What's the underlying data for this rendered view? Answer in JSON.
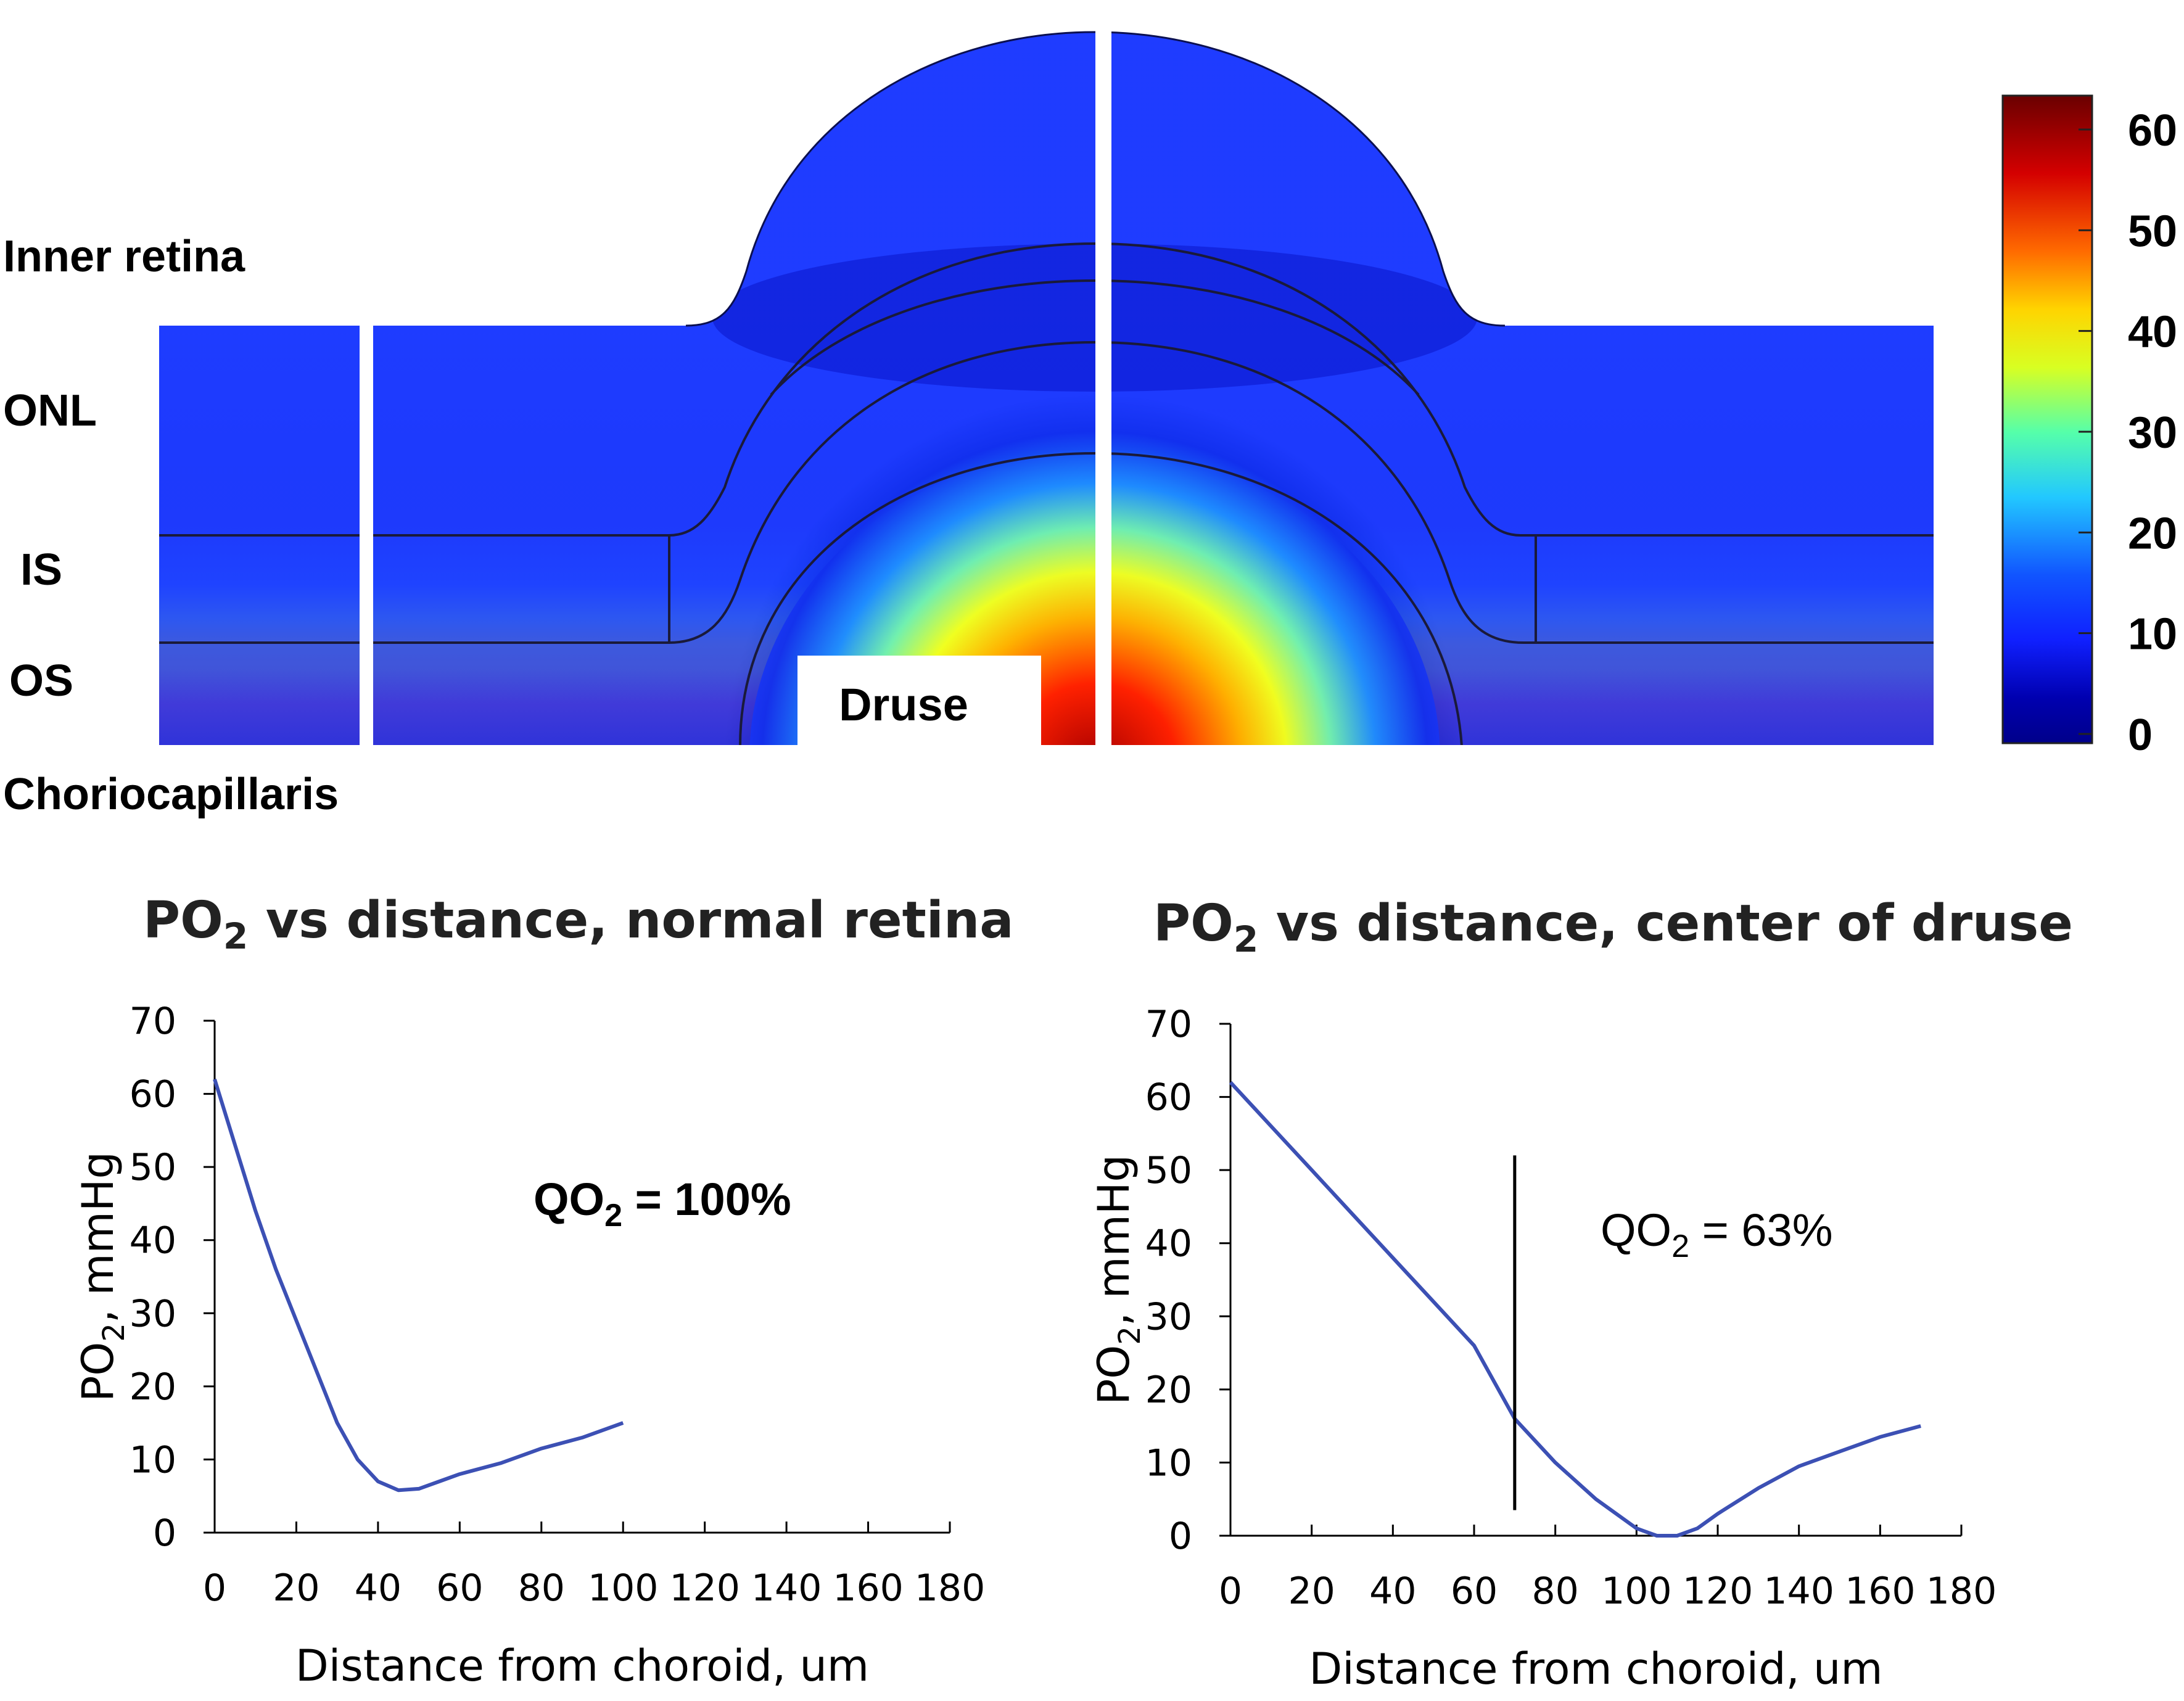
{
  "heatmap": {
    "layer_labels": [
      "Inner retina",
      "ONL",
      "IS",
      "OS",
      "Choriocapillaris"
    ],
    "druse_label": "Druse",
    "colorbar": {
      "ticks": [
        "60",
        "50",
        "40",
        "30",
        "20",
        "10",
        "0"
      ],
      "colors": [
        "#6a0000",
        "#d40000",
        "#ff6a00",
        "#ffd400",
        "#d8ff22",
        "#55ffaa",
        "#22c8ff",
        "#1155ff",
        "#1020ff",
        "#0000b0",
        "#00008a"
      ]
    }
  },
  "chart_data": [
    {
      "type": "line",
      "title_main": "PO",
      "title_sub": "2",
      "title_rest": " vs distance, normal retina",
      "xlabel": "Distance from choroid, um",
      "ylabel_main": "PO",
      "ylabel_sub": "2",
      "ylabel_rest": ", mmHg",
      "xlim": [
        0,
        180
      ],
      "ylim": [
        0,
        70
      ],
      "xticks": [
        0,
        20,
        40,
        60,
        80,
        100,
        120,
        140,
        160,
        180
      ],
      "yticks": [
        0,
        10,
        20,
        30,
        40,
        50,
        60,
        70
      ],
      "annotation_main": "QO",
      "annotation_sub": "2",
      "annotation_rest": " = 100%",
      "line_color": "#3c50b4",
      "series": [
        {
          "x": [
            0,
            5,
            10,
            15,
            20,
            25,
            30,
            35,
            40,
            45,
            50,
            55,
            60,
            70,
            80,
            90,
            100
          ],
          "y": [
            62,
            53,
            44,
            36,
            29,
            22,
            15,
            10,
            7,
            5.8,
            6,
            7,
            8,
            9.5,
            11.5,
            13,
            15
          ]
        }
      ]
    },
    {
      "type": "line",
      "title_main": "PO",
      "title_sub": "2",
      "title_rest": " vs distance, center of druse",
      "xlabel": "Distance from choroid, um",
      "ylabel_main": "PO",
      "ylabel_sub": "2",
      "ylabel_rest": ", mmHg",
      "xlim": [
        0,
        180
      ],
      "ylim": [
        0,
        70
      ],
      "xticks": [
        0,
        20,
        40,
        60,
        80,
        100,
        120,
        140,
        160,
        180
      ],
      "yticks": [
        0,
        10,
        20,
        30,
        40,
        50,
        60,
        70
      ],
      "annotation_main": "QO",
      "annotation_sub": "2",
      "annotation_rest": " = 63%",
      "vline_x": 70,
      "vline_y": [
        3.5,
        52
      ],
      "line_color": "#3c50b4",
      "series": [
        {
          "x": [
            0,
            5,
            10,
            20,
            30,
            40,
            50,
            60,
            70,
            80,
            90,
            100,
            105,
            110,
            115,
            120,
            130,
            140,
            150,
            160,
            170
          ],
          "y": [
            62,
            59,
            56,
            50,
            44,
            38,
            32,
            26,
            16,
            10,
            5,
            1,
            0,
            0,
            1,
            3,
            6.5,
            9.5,
            11.5,
            13.5,
            15
          ]
        }
      ]
    }
  ]
}
